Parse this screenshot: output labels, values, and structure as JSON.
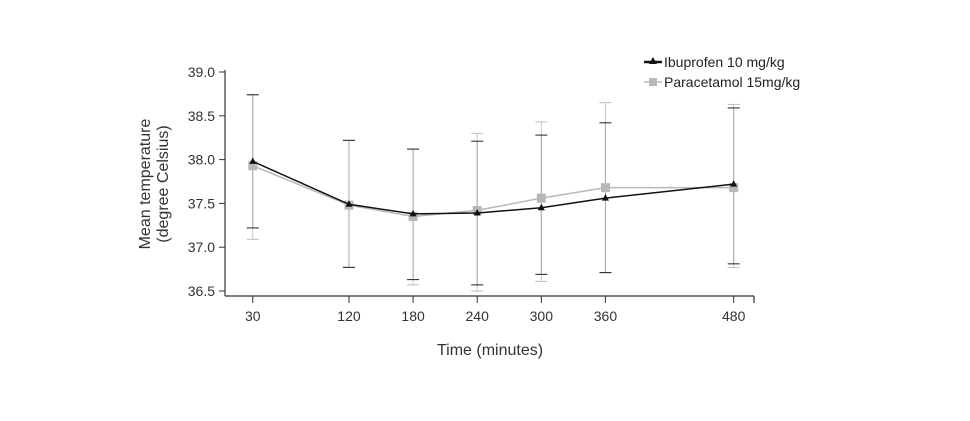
{
  "chart_data": {
    "type": "line",
    "title": "",
    "xlabel": "Time (minutes)",
    "ylabel": [
      "Mean temperature",
      "(degree Celsius)"
    ],
    "x": [
      30,
      120,
      180,
      240,
      300,
      360,
      480
    ],
    "x_tick_labels": [
      "30",
      "120",
      "180",
      "240",
      "300",
      "360",
      "480"
    ],
    "y_ticks": [
      36.5,
      37.0,
      37.5,
      38.0,
      38.5,
      39.0
    ],
    "y_tick_labels": [
      "36.5",
      "37.0",
      "37.5",
      "38.0",
      "38.5",
      "39.0"
    ],
    "xlim": [
      4,
      499
    ],
    "ylim": [
      36.5,
      39.0
    ],
    "grid": false,
    "legend_position": "top-right",
    "series": [
      {
        "name": "Ibuprofen 10 mg/kg",
        "color": "#111111",
        "marker": "triangle",
        "values": [
          37.98,
          37.49,
          37.38,
          37.39,
          37.45,
          37.56,
          37.72
        ],
        "error_low": [
          37.22,
          36.77,
          36.63,
          36.57,
          36.69,
          36.71,
          36.81
        ],
        "error_high": [
          38.74,
          38.22,
          38.12,
          38.21,
          38.28,
          38.42,
          38.59
        ]
      },
      {
        "name": "Paracetamol 15mg/kg",
        "color": "#b8b8b8",
        "marker": "square",
        "values": [
          37.93,
          37.48,
          37.35,
          37.42,
          37.56,
          37.68,
          37.68
        ],
        "error_low": [
          37.09,
          36.77,
          36.57,
          36.5,
          36.61,
          36.71,
          36.77
        ],
        "error_high": [
          38.74,
          38.22,
          38.12,
          38.3,
          38.43,
          38.65,
          38.63
        ]
      }
    ]
  }
}
